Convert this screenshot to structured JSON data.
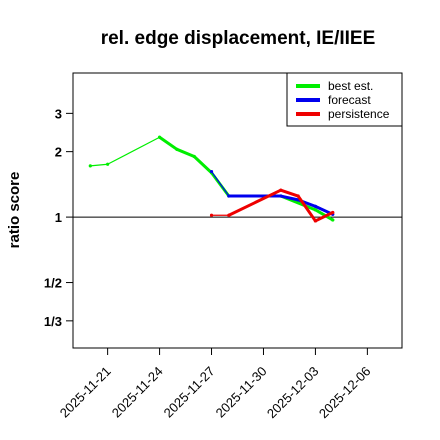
{
  "chart_data": {
    "type": "line",
    "title": "rel. edge displacement, IE/IIEE",
    "ylabel": "ratio score",
    "xlabel": "",
    "y_scale": "log",
    "yticks": [
      {
        "value": 0.3333,
        "label": "1/3"
      },
      {
        "value": 0.5,
        "label": "1/2"
      },
      {
        "value": 1,
        "label": "1"
      },
      {
        "value": 2,
        "label": "2"
      },
      {
        "value": 3,
        "label": "3"
      }
    ],
    "ylim": [
      0.25,
      4.6
    ],
    "xlim": [
      "2025-11-19",
      "2025-12-08"
    ],
    "xticks": [
      {
        "date": "2025-11-21",
        "label": "2025-11-21",
        "color": "#000000"
      },
      {
        "date": "2025-11-24",
        "label": "2025-11-24",
        "color": "#000000"
      },
      {
        "date": "2025-11-27",
        "label": "2025-11-27",
        "color": "#228B22"
      },
      {
        "date": "2025-11-30",
        "label": "2025-11-30",
        "color": "#000000"
      },
      {
        "date": "2025-12-03",
        "label": "2025-12-03",
        "color": "#000000"
      },
      {
        "date": "2025-12-06",
        "label": "2025-12-06",
        "color": "#000000"
      }
    ],
    "reference_line": 1,
    "legend": {
      "position": "top-right",
      "entries": [
        "best est.",
        "forecast",
        "persistence"
      ]
    },
    "series": [
      {
        "name": "best est.",
        "color": "#00ee00",
        "points": [
          {
            "x": "2025-11-20",
            "y": 1.72
          },
          {
            "x": "2025-11-21",
            "y": 1.75
          },
          {
            "x": "2025-11-24",
            "y": 2.33
          },
          {
            "x": "2025-11-25",
            "y": 2.05
          },
          {
            "x": "2025-11-26",
            "y": 1.9
          },
          {
            "x": "2025-11-27",
            "y": 1.6
          },
          {
            "x": "2025-11-28",
            "y": 1.25
          },
          {
            "x": "2025-12-01",
            "y": 1.25
          },
          {
            "x": "2025-12-03",
            "y": 1.08
          },
          {
            "x": "2025-12-04",
            "y": 0.97
          }
        ]
      },
      {
        "name": "forecast",
        "color": "#0000ee",
        "points": [
          {
            "x": "2025-11-27",
            "y": 1.62
          },
          {
            "x": "2025-11-28",
            "y": 1.25
          },
          {
            "x": "2025-12-01",
            "y": 1.25
          },
          {
            "x": "2025-12-02",
            "y": 1.2
          },
          {
            "x": "2025-12-03",
            "y": 1.12
          },
          {
            "x": "2025-12-04",
            "y": 1.03
          }
        ]
      },
      {
        "name": "persistence",
        "color": "#ee0000",
        "points": [
          {
            "x": "2025-11-27",
            "y": 1.02
          },
          {
            "x": "2025-11-28",
            "y": 1.02
          },
          {
            "x": "2025-12-01",
            "y": 1.33
          },
          {
            "x": "2025-12-02",
            "y": 1.25
          },
          {
            "x": "2025-12-03",
            "y": 0.96
          },
          {
            "x": "2025-12-04",
            "y": 1.05
          }
        ]
      }
    ]
  }
}
